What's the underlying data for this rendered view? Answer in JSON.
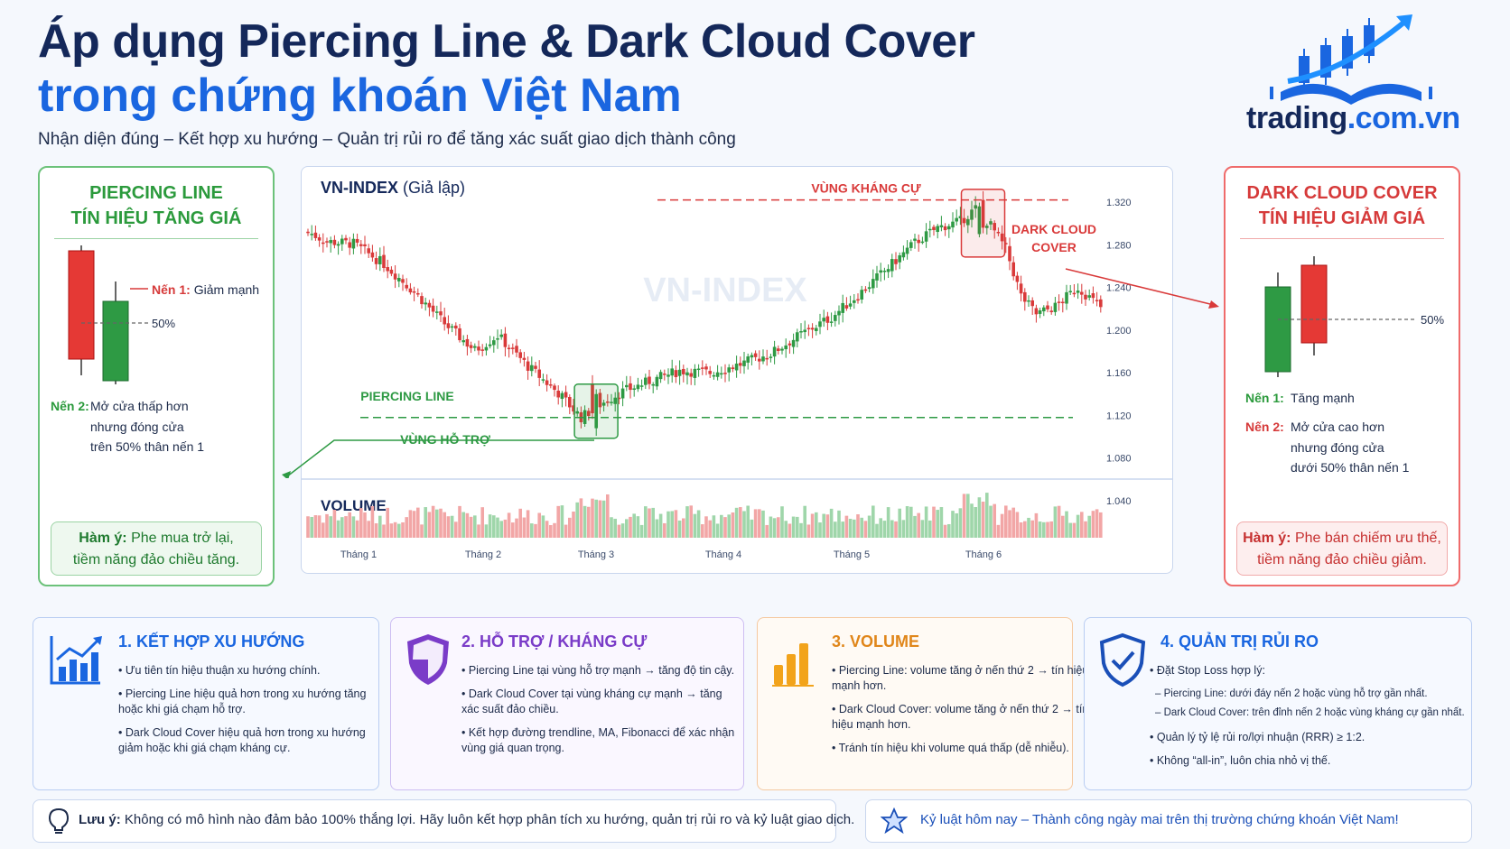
{
  "header": {
    "title_line1": "Áp dụng Piercing Line & Dark Cloud Cover",
    "title_line2": "trong chứng khoán Việt Nam",
    "subtitle": "Nhận diện đúng – Kết hợp xu hướng – Quản trị rủi ro để tăng xác suất giao dịch thành công",
    "logo_text_main": "trading",
    "logo_text_domain": ".com.vn"
  },
  "left_card": {
    "title1": "PIERCING LINE",
    "title2": "TÍN HIỆU TĂNG GIÁ",
    "candle1_label": "Nến 1:",
    "candle1_text": "Giảm mạnh",
    "fifty": "50%",
    "candle2_label": "Nến 2:",
    "candle2_line1": "Mở cửa thấp hơn",
    "candle2_line2": "nhưng đóng cửa",
    "candle2_line3": "trên 50% thân nến 1",
    "meaning_label": "Hàm ý:",
    "meaning_line1": "Phe mua trở lại,",
    "meaning_line2": "tiềm năng đảo chiều tăng."
  },
  "right_card": {
    "title1": "DARK CLOUD COVER",
    "title2": "TÍN HIỆU GIẢM GIÁ",
    "fifty": "50%",
    "candle1_label": "Nến 1:",
    "candle1_text": "Tăng mạnh",
    "candle2_label": "Nến 2:",
    "candle2_line1": "Mở cửa cao hơn",
    "candle2_line2": "nhưng đóng cửa",
    "candle2_line3": "dưới 50% thân nến 1",
    "meaning_label": "Hàm ý:",
    "meaning_line1": "Phe bán chiếm ưu thế,",
    "meaning_line2": "tiềm năng đảo chiều giảm."
  },
  "chart_data": {
    "type": "candlestick",
    "title": "VN-INDEX",
    "title_note": "(Giả lập)",
    "watermark": "VN-INDEX",
    "volume_label": "VOLUME",
    "x_ticks": [
      "Tháng 1",
      "Tháng 2",
      "Tháng 3",
      "Tháng 4",
      "Tháng 5",
      "Tháng 6"
    ],
    "y_ticks": [
      "1.320",
      "1.280",
      "1.240",
      "1.200",
      "1.160",
      "1.120",
      "1.080",
      "1.040"
    ],
    "y_tick_values": [
      1320,
      1280,
      1240,
      1200,
      1160,
      1120,
      1080,
      1040
    ],
    "ylim": [
      1040,
      1320
    ],
    "resistance_level": 1322,
    "support_level": 1118,
    "annotations": {
      "resistance": "VÙNG KHÁNG CỰ",
      "support": "VÙNG HỖ TRỢ",
      "piercing": "PIERCING LINE",
      "dark_cloud_line1": "DARK CLOUD",
      "dark_cloud_line2": "COVER"
    },
    "colors": {
      "up": "#2e9a44",
      "down": "#d93a3a",
      "resistance": "#d93a3a",
      "support": "#2e9a44"
    },
    "path_points": [
      [
        0,
        1292
      ],
      [
        5,
        1283
      ],
      [
        12,
        1281
      ],
      [
        20,
        1262
      ],
      [
        28,
        1236
      ],
      [
        36,
        1206
      ],
      [
        44,
        1181
      ],
      [
        50,
        1195
      ],
      [
        58,
        1166
      ],
      [
        66,
        1141
      ],
      [
        72,
        1118
      ],
      [
        76,
        1128
      ],
      [
        82,
        1141
      ],
      [
        90,
        1152
      ],
      [
        98,
        1162
      ],
      [
        106,
        1160
      ],
      [
        114,
        1168
      ],
      [
        122,
        1178
      ],
      [
        130,
        1196
      ],
      [
        138,
        1212
      ],
      [
        146,
        1236
      ],
      [
        154,
        1262
      ],
      [
        160,
        1282
      ],
      [
        166,
        1296
      ],
      [
        172,
        1302
      ],
      [
        176,
        1314
      ],
      [
        180,
        1298
      ],
      [
        184,
        1276
      ],
      [
        188,
        1232
      ],
      [
        192,
        1215
      ],
      [
        197,
        1222
      ],
      [
        203,
        1240
      ],
      [
        210,
        1218
      ]
    ]
  },
  "cards": [
    {
      "title": "1. KẾT HỢP XU HƯỚNG",
      "icon": "chart-trend-icon",
      "items": [
        [
          "• Ưu tiên tín hiệu thuận xu hướng chính."
        ],
        [
          "• Piercing Line hiệu quả hơn trong xu hướng tăng",
          "  hoặc khi giá chạm hỗ trợ."
        ],
        [
          "• Dark Cloud Cover hiệu quả hơn trong xu hướng",
          "  giảm hoặc khi giá chạm kháng cự."
        ]
      ]
    },
    {
      "title": "2. HỖ TRỢ / KHÁNG CỰ",
      "icon": "shield-icon",
      "items": [
        [
          "• Piercing Line tại vùng hỗ trợ mạnh → tăng độ tin cậy."
        ],
        [
          "• Dark Cloud Cover tại vùng kháng cự mạnh → tăng",
          "  xác suất đảo chiều."
        ],
        [
          "• Kết hợp đường trendline, MA, Fibonacci để xác nhận",
          "  vùng giá quan trọng."
        ]
      ]
    },
    {
      "title": "3. VOLUME",
      "icon": "volume-bars-icon",
      "items": [
        [
          "• Piercing Line: volume tăng ở nến thứ 2 → tín hiệu",
          "  mạnh hơn."
        ],
        [
          "• Dark Cloud Cover: volume tăng ở nến thứ 2 → tín",
          "  hiệu mạnh hơn."
        ],
        [
          "• Tránh tín hiệu khi volume quá thấp (dễ nhiễu)."
        ]
      ]
    },
    {
      "title": "4. QUẢN TRỊ RỦI RO",
      "icon": "shield-check-icon",
      "items": [
        [
          "• Đặt Stop Loss hợp lý:"
        ],
        [
          "– Piercing Line: dưới đáy nến 2 hoặc vùng hỗ trợ gần nhất."
        ],
        [
          "– Dark Cloud Cover: trên đỉnh nến 2 hoặc vùng kháng cự gần nhất."
        ],
        [
          "• Quản lý tỷ lệ rủi ro/lợi nhuận (RRR) ≥ 1:2."
        ],
        [
          "• Không “all-in”, luôn chia nhỏ vị thế."
        ]
      ]
    }
  ],
  "footer": {
    "note_label": "Lưu ý:",
    "note_text": "Không có mô hình nào đảm bảo 100% thắng lợi. Hãy luôn kết hợp phân tích xu hướng, quản trị rủi ro và kỷ luật giao dịch.",
    "motto": "Kỷ luật hôm nay – Thành công ngày mai trên thị trường chứng khoán Việt Nam!"
  }
}
